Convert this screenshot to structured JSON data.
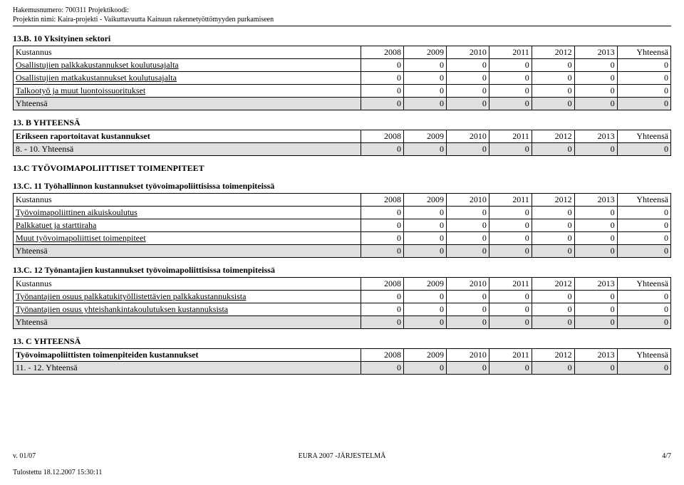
{
  "header": {
    "line1_label": "Hakemusnumero:",
    "line1_value": "700311 Projektikoodi:",
    "line2_label": "Projektin nimi:",
    "line2_value": "Kaira-projekti - Vaikuttavuutta Kainuun rakennetyöttömyyden purkamiseen"
  },
  "years": [
    "2008",
    "2009",
    "2010",
    "2011",
    "2012",
    "2013"
  ],
  "total_label": "Yhteensä",
  "sections": {
    "b10": {
      "title": "13.B. 10 Yksityinen sektori",
      "first_col": "Kustannus",
      "rows": [
        {
          "label": "Osallistujien palkkakustannukset koulutusajalta",
          "underline": true,
          "vals": [
            "0",
            "0",
            "0",
            "0",
            "0",
            "0",
            "0"
          ]
        },
        {
          "label": "Osallistujien matkakustannukset koulutusajalta",
          "underline": true,
          "vals": [
            "0",
            "0",
            "0",
            "0",
            "0",
            "0",
            "0"
          ]
        },
        {
          "label": "Talkootyö ja muut luontoissuoritukset",
          "underline": true,
          "vals": [
            "0",
            "0",
            "0",
            "0",
            "0",
            "0",
            "0"
          ]
        },
        {
          "label": "Yhteensä",
          "underline": false,
          "shaded": true,
          "vals": [
            "0",
            "0",
            "0",
            "0",
            "0",
            "0",
            "0"
          ]
        }
      ]
    },
    "byht": {
      "title": "13. B YHTEENSÄ",
      "first_col": "Erikseen raportoitavat kustannukset",
      "first_bold": true,
      "rows": [
        {
          "label": "8. - 10. Yhteensä",
          "underline": false,
          "shaded": true,
          "vals": [
            "0",
            "0",
            "0",
            "0",
            "0",
            "0",
            "0"
          ]
        }
      ]
    },
    "ctitle": "13.C TYÖVOIMAPOLIITTISET TOIMENPITEET",
    "c11": {
      "title": "13.C. 11 Työhallinnon kustannukset työvoimapoliittisissa toimenpiteissä",
      "first_col": "Kustannus",
      "rows": [
        {
          "label": "Työvoimapoliittinen aikuiskoulutus",
          "underline": true,
          "vals": [
            "0",
            "0",
            "0",
            "0",
            "0",
            "0",
            "0"
          ]
        },
        {
          "label": "Palkkatuet ja starttiraha",
          "underline": true,
          "vals": [
            "0",
            "0",
            "0",
            "0",
            "0",
            "0",
            "0"
          ]
        },
        {
          "label": "Muut työvoimapoliittiset toimenpiteet",
          "underline": true,
          "vals": [
            "0",
            "0",
            "0",
            "0",
            "0",
            "0",
            "0"
          ]
        },
        {
          "label": "Yhteensä",
          "underline": false,
          "shaded": true,
          "vals": [
            "0",
            "0",
            "0",
            "0",
            "0",
            "0",
            "0"
          ]
        }
      ]
    },
    "c12": {
      "title": "13.C. 12 Työnantajien kustannukset työvoimapoliittisissa toimenpiteissä",
      "first_col": "Kustannus",
      "rows": [
        {
          "label": "Työnantajien osuus palkkatukityöllistettävien palkkakustannuksista",
          "underline": true,
          "vals": [
            "0",
            "0",
            "0",
            "0",
            "0",
            "0",
            "0"
          ]
        },
        {
          "label": "Työnantajien osuus yhteishankintakoulutuksen kustannuksista",
          "underline": true,
          "vals": [
            "0",
            "0",
            "0",
            "0",
            "0",
            "0",
            "0"
          ]
        },
        {
          "label": "Yhteensä",
          "underline": false,
          "shaded": true,
          "vals": [
            "0",
            "0",
            "0",
            "0",
            "0",
            "0",
            "0"
          ]
        }
      ]
    },
    "cyht": {
      "title": "13. C YHTEENSÄ",
      "first_col": "Työvoimapoliittisten toimenpiteiden kustannukset",
      "first_bold": true,
      "rows": [
        {
          "label": "11. - 12. Yhteensä",
          "underline": false,
          "shaded": true,
          "vals": [
            "0",
            "0",
            "0",
            "0",
            "0",
            "0",
            "0"
          ]
        }
      ]
    }
  },
  "footer": {
    "left": "v. 01/07",
    "center": "EURA 2007 -JÄRJESTELMÄ",
    "right": "4/7",
    "printed": "Tulostettu 18.12.2007 15:30:11"
  }
}
